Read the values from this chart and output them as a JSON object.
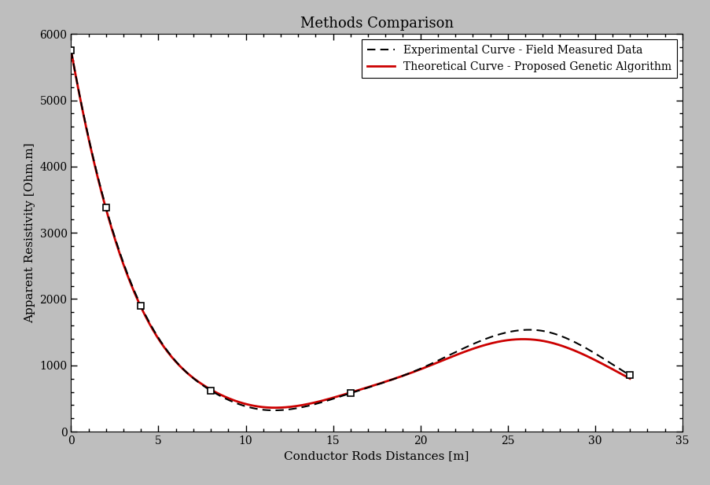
{
  "title": "Methods Comparison",
  "xlabel": "Conductor Rods Distances [m]",
  "ylabel": "Apparent Resistivity [Ohm.m]",
  "xlim": [
    0,
    35
  ],
  "ylim": [
    0,
    6000
  ],
  "xticks": [
    0,
    5,
    10,
    15,
    20,
    25,
    30,
    35
  ],
  "yticks": [
    0,
    1000,
    2000,
    3000,
    4000,
    5000,
    6000
  ],
  "background_color": "#bebebe",
  "plot_background": "#ffffff",
  "exp_marker_x": [
    0,
    2,
    4,
    8,
    16,
    32
  ],
  "exp_marker_y": [
    5750,
    3380,
    1900,
    620,
    580,
    850
  ],
  "exp_ctrl_x": [
    0,
    2,
    4,
    8,
    11,
    16,
    20,
    25,
    27,
    30,
    32
  ],
  "exp_ctrl_y": [
    5750,
    3380,
    1900,
    620,
    330,
    580,
    950,
    1500,
    1520,
    1180,
    850
  ],
  "theo_ctrl_x": [
    0,
    2,
    4,
    8,
    11,
    16,
    20,
    25,
    27,
    30,
    32
  ],
  "theo_ctrl_y": [
    5750,
    3360,
    1880,
    635,
    370,
    590,
    940,
    1380,
    1370,
    1080,
    800
  ],
  "exp_color": "#000000",
  "theo_color": "#cc0000",
  "legend_exp": "Experimental Curve - Field Measured Data",
  "legend_theo": "Theoretical Curve - Proposed Genetic Algorithm",
  "title_fontsize": 13,
  "label_fontsize": 11,
  "tick_fontsize": 10,
  "legend_fontsize": 10
}
